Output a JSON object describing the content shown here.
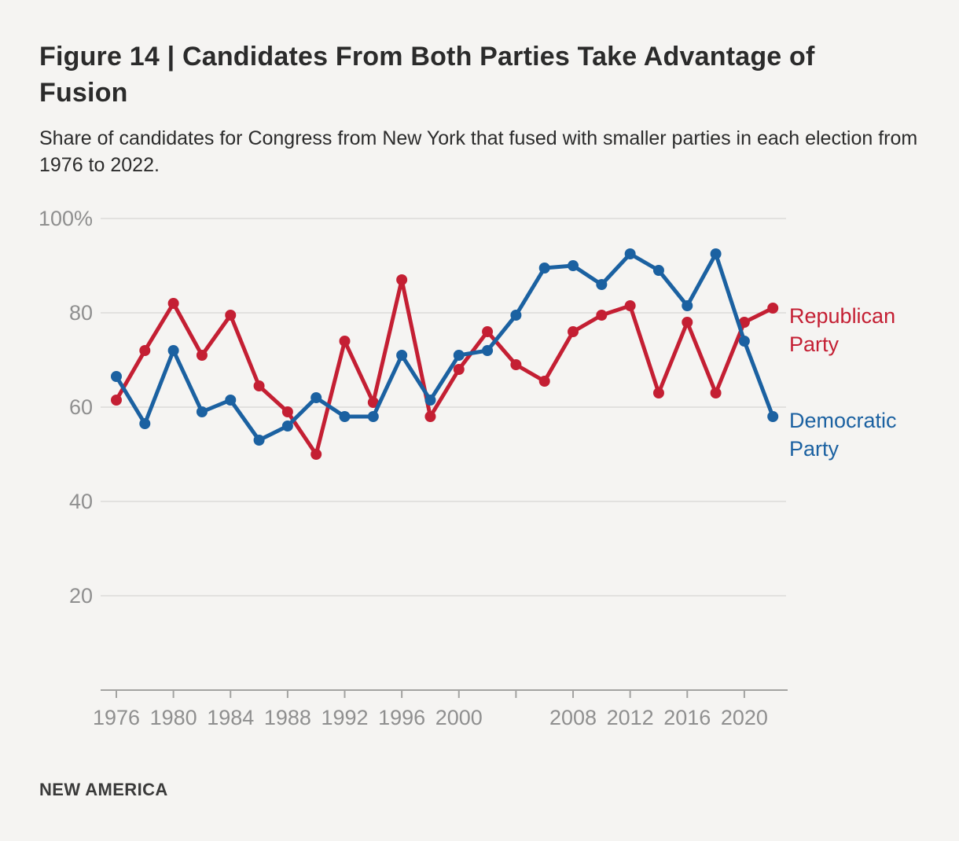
{
  "page": {
    "background": "#f5f4f2"
  },
  "header": {
    "title": "Figure 14 | Candidates From Both Parties Take Advantage of Fusion",
    "subtitle": "Share of candidates for Congress from New York that fused with smaller parties in each election from 1976 to 2022."
  },
  "source": "NEW AMERICA",
  "chart_data": {
    "type": "line",
    "title": "Figure 14 | Candidates From Both Parties Take Advantage of Fusion",
    "subtitle": "Share of candidates for Congress from New York that fused with smaller parties in each election from 1976 to 2022.",
    "x": [
      1976,
      1978,
      1980,
      1982,
      1984,
      1986,
      1988,
      1990,
      1992,
      1994,
      1996,
      1998,
      2000,
      2002,
      2004,
      2006,
      2008,
      2010,
      2012,
      2014,
      2016,
      2018,
      2020,
      2022
    ],
    "series": [
      {
        "name": "Republican Party",
        "color": "#c41f33",
        "values": [
          61.5,
          72,
          82,
          71,
          79.5,
          64.5,
          59,
          50,
          74,
          61,
          87,
          58,
          68,
          76,
          69,
          65.5,
          76,
          79.5,
          81.5,
          63,
          78,
          63,
          78,
          81
        ]
      },
      {
        "name": "Democratic Party",
        "color": "#1b61a1",
        "values": [
          66.5,
          56.5,
          72,
          59,
          61.5,
          53,
          56,
          62,
          58,
          58,
          71,
          61.5,
          71,
          72,
          79.5,
          89.5,
          90,
          86,
          92.5,
          89,
          81.5,
          92.5,
          74,
          58
        ]
      }
    ],
    "ylim": [
      0,
      100
    ],
    "xlabel": "",
    "ylabel": "",
    "y_ticks": [
      {
        "value": 100,
        "label": "100%"
      },
      {
        "value": 80,
        "label": "80"
      },
      {
        "value": 60,
        "label": "60"
      },
      {
        "value": 40,
        "label": "40"
      },
      {
        "value": 20,
        "label": "20"
      }
    ],
    "x_ticks": [
      {
        "year": 1976,
        "label": "1976"
      },
      {
        "year": 1980,
        "label": "1980"
      },
      {
        "year": 1984,
        "label": "1984"
      },
      {
        "year": 1988,
        "label": "1988"
      },
      {
        "year": 1992,
        "label": "1992"
      },
      {
        "year": 1996,
        "label": "1996"
      },
      {
        "year": 2000,
        "label": "2000"
      },
      {
        "year": 2004,
        "label": ""
      },
      {
        "year": 2008,
        "label": "2008"
      },
      {
        "year": 2012,
        "label": "2012"
      },
      {
        "year": 2016,
        "label": "2016"
      },
      {
        "year": 2020,
        "label": "2020"
      }
    ],
    "grid": "horizontal",
    "grid_color": "#e2e1df",
    "axis_color": "#a3a3a1",
    "tick_label_color": "#8f8f8f",
    "legend_position": "right"
  }
}
